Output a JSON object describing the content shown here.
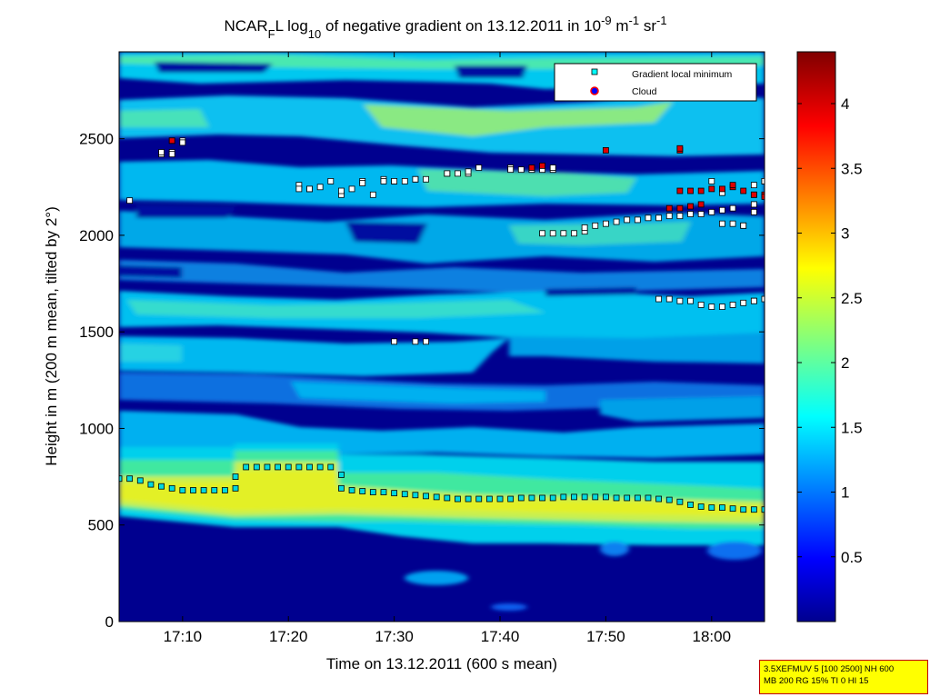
{
  "chart_data": {
    "type": "heatmap",
    "title": {
      "pre": "NCAR",
      "sub1": "F",
      "mid1": "L log",
      "sub2": "10",
      "mid2": " of negative gradient on 13.12.2011 in 10",
      "sup1": "-9",
      "mid3": " m",
      "sup2": "-1",
      "mid4": " sr",
      "sup3": "-1"
    },
    "xlabel": "Time on 13.12.2011 (600 s mean)",
    "ylabel": "Height in m (200 m mean, tilted by 2°)",
    "xlim": [
      "17:04",
      "18:05"
    ],
    "ylim": [
      0,
      2950
    ],
    "x_ticks": [
      "17:10",
      "17:20",
      "17:30",
      "17:40",
      "17:50",
      "18:00"
    ],
    "y_ticks": [
      0,
      500,
      1000,
      1500,
      2000,
      2500
    ],
    "colorbar": {
      "range": [
        0,
        4.4
      ],
      "ticks": [
        "0.5",
        "1",
        "1.5",
        "2",
        "2.5",
        "3",
        "3.5",
        "4"
      ],
      "colormap": "jet"
    },
    "legend": {
      "placement": "top-right",
      "entries": [
        {
          "label": "Gradient local minimum",
          "marker": "square",
          "color": "#00ffff"
        },
        {
          "label": "Cloud",
          "marker": "circle",
          "color": "#0000ff",
          "edge": "#ff0000"
        }
      ]
    },
    "colors": {
      "background_low": "#00008f",
      "gradient_marker_fill": "#00d8e0",
      "upper_marker_fill": "#ffffff",
      "cloud_marker_fill": "#e00000"
    },
    "series": [
      {
        "kind": "gradient-local-minimum",
        "points": [
          [
            "17:04",
            740
          ],
          [
            "17:05",
            740
          ],
          [
            "17:06",
            730
          ],
          [
            "17:07",
            710
          ],
          [
            "17:08",
            700
          ],
          [
            "17:09",
            690
          ],
          [
            "17:10",
            680
          ],
          [
            "17:11",
            680
          ],
          [
            "17:12",
            680
          ],
          [
            "17:13",
            680
          ],
          [
            "17:14",
            680
          ],
          [
            "17:15",
            690
          ],
          [
            "17:15",
            750
          ],
          [
            "17:16",
            800
          ],
          [
            "17:17",
            800
          ],
          [
            "17:18",
            800
          ],
          [
            "17:19",
            800
          ],
          [
            "17:20",
            800
          ],
          [
            "17:21",
            800
          ],
          [
            "17:22",
            800
          ],
          [
            "17:23",
            800
          ],
          [
            "17:24",
            800
          ],
          [
            "17:25",
            760
          ],
          [
            "17:25",
            690
          ],
          [
            "17:26",
            680
          ],
          [
            "17:27",
            675
          ],
          [
            "17:28",
            670
          ],
          [
            "17:29",
            670
          ],
          [
            "17:30",
            665
          ],
          [
            "17:31",
            660
          ],
          [
            "17:32",
            655
          ],
          [
            "17:33",
            650
          ],
          [
            "17:34",
            645
          ],
          [
            "17:35",
            640
          ],
          [
            "17:36",
            635
          ],
          [
            "17:37",
            635
          ],
          [
            "17:38",
            635
          ],
          [
            "17:39",
            635
          ],
          [
            "17:40",
            635
          ],
          [
            "17:41",
            635
          ],
          [
            "17:42",
            640
          ],
          [
            "17:43",
            640
          ],
          [
            "17:44",
            640
          ],
          [
            "17:45",
            640
          ],
          [
            "17:46",
            645
          ],
          [
            "17:47",
            645
          ],
          [
            "17:48",
            645
          ],
          [
            "17:49",
            645
          ],
          [
            "17:50",
            645
          ],
          [
            "17:51",
            640
          ],
          [
            "17:52",
            640
          ],
          [
            "17:53",
            640
          ],
          [
            "17:54",
            640
          ],
          [
            "17:55",
            635
          ],
          [
            "17:56",
            630
          ],
          [
            "17:57",
            620
          ],
          [
            "17:58",
            605
          ],
          [
            "17:59",
            595
          ],
          [
            "18:00",
            590
          ],
          [
            "18:01",
            590
          ],
          [
            "18:02",
            585
          ],
          [
            "18:03",
            580
          ],
          [
            "18:04",
            580
          ],
          [
            "18:05",
            580
          ]
        ]
      },
      {
        "kind": "upper-layer-minimum",
        "points": [
          [
            "17:05",
            2180
          ],
          [
            "17:08",
            2420
          ],
          [
            "17:08",
            2430
          ],
          [
            "17:09",
            2430
          ],
          [
            "17:09",
            2420
          ],
          [
            "17:10",
            2490
          ],
          [
            "17:10",
            2480
          ],
          [
            "17:21",
            2260
          ],
          [
            "17:21",
            2240
          ],
          [
            "17:22",
            2240
          ],
          [
            "17:22",
            2240
          ],
          [
            "17:23",
            2250
          ],
          [
            "17:24",
            2280
          ],
          [
            "17:25",
            2210
          ],
          [
            "17:25",
            2230
          ],
          [
            "17:26",
            2240
          ],
          [
            "17:27",
            2280
          ],
          [
            "17:27",
            2270
          ],
          [
            "17:28",
            2210
          ],
          [
            "17:29",
            2290
          ],
          [
            "17:29",
            2280
          ],
          [
            "17:30",
            2280
          ],
          [
            "17:30",
            2280
          ],
          [
            "17:31",
            2280
          ],
          [
            "17:32",
            2290
          ],
          [
            "17:32",
            2290
          ],
          [
            "17:33",
            2290
          ],
          [
            "17:30",
            1450
          ],
          [
            "17:32",
            1450
          ],
          [
            "17:33",
            1450
          ],
          [
            "17:35",
            2320
          ],
          [
            "17:35",
            2320
          ],
          [
            "17:36",
            2320
          ],
          [
            "17:37",
            2320
          ],
          [
            "17:37",
            2330
          ],
          [
            "17:38",
            2350
          ],
          [
            "17:41",
            2350
          ],
          [
            "17:41",
            2340
          ],
          [
            "17:42",
            2340
          ],
          [
            "17:43",
            2340
          ],
          [
            "17:43",
            2340
          ],
          [
            "17:44",
            2340
          ],
          [
            "17:45",
            2340
          ],
          [
            "17:45",
            2350
          ],
          [
            "17:44",
            2010
          ],
          [
            "17:45",
            2010
          ],
          [
            "17:46",
            2010
          ],
          [
            "17:47",
            2010
          ],
          [
            "17:48",
            2020
          ],
          [
            "17:48",
            2040
          ],
          [
            "17:49",
            2050
          ],
          [
            "17:50",
            2060
          ],
          [
            "17:51",
            2070
          ],
          [
            "17:52",
            2080
          ],
          [
            "17:53",
            2080
          ],
          [
            "17:54",
            2090
          ],
          [
            "17:55",
            2090
          ],
          [
            "17:56",
            2100
          ],
          [
            "17:57",
            2100
          ],
          [
            "17:58",
            2110
          ],
          [
            "17:59",
            2110
          ],
          [
            "18:00",
            2120
          ],
          [
            "18:01",
            2130
          ],
          [
            "18:02",
            2140
          ],
          [
            "17:55",
            1670
          ],
          [
            "17:56",
            1670
          ],
          [
            "17:57",
            1660
          ],
          [
            "17:58",
            1660
          ],
          [
            "17:59",
            1640
          ],
          [
            "18:00",
            1630
          ],
          [
            "18:01",
            1630
          ],
          [
            "18:02",
            1640
          ],
          [
            "18:03",
            1650
          ],
          [
            "18:04",
            1660
          ],
          [
            "18:04",
            1660
          ],
          [
            "18:05",
            1670
          ],
          [
            "18:00",
            2280
          ],
          [
            "18:01",
            2220
          ],
          [
            "18:01",
            2060
          ],
          [
            "18:02",
            2060
          ],
          [
            "18:03",
            2050
          ],
          [
            "18:03",
            2050
          ],
          [
            "18:04",
            2120
          ],
          [
            "18:04",
            2160
          ],
          [
            "18:04",
            2260
          ],
          [
            "18:05",
            2280
          ],
          [
            "18:05",
            2280
          ],
          [
            "18:06",
            1650
          ]
        ]
      },
      {
        "kind": "cloud",
        "points": [
          [
            "17:09",
            2490
          ],
          [
            "17:09",
            2490
          ],
          [
            "17:43",
            2350
          ],
          [
            "17:44",
            2360
          ],
          [
            "17:50",
            2440
          ],
          [
            "17:57",
            2440
          ],
          [
            "17:57",
            2450
          ],
          [
            "17:56",
            2140
          ],
          [
            "17:57",
            2140
          ],
          [
            "17:58",
            2150
          ],
          [
            "17:59",
            2160
          ],
          [
            "17:57",
            2230
          ],
          [
            "17:58",
            2230
          ],
          [
            "17:59",
            2230
          ],
          [
            "18:00",
            2240
          ],
          [
            "18:01",
            2240
          ],
          [
            "18:02",
            2250
          ],
          [
            "18:02",
            2260
          ],
          [
            "18:03",
            2230
          ],
          [
            "18:04",
            2210
          ],
          [
            "18:04",
            2210
          ],
          [
            "18:05",
            2210
          ],
          [
            "18:05",
            2200
          ]
        ]
      }
    ]
  },
  "info_box": {
    "line1": "3.5XEFMUV 5 [100 2500] NH 600",
    "line2": "MB 200 RG 15% TI 0 HI 15"
  }
}
